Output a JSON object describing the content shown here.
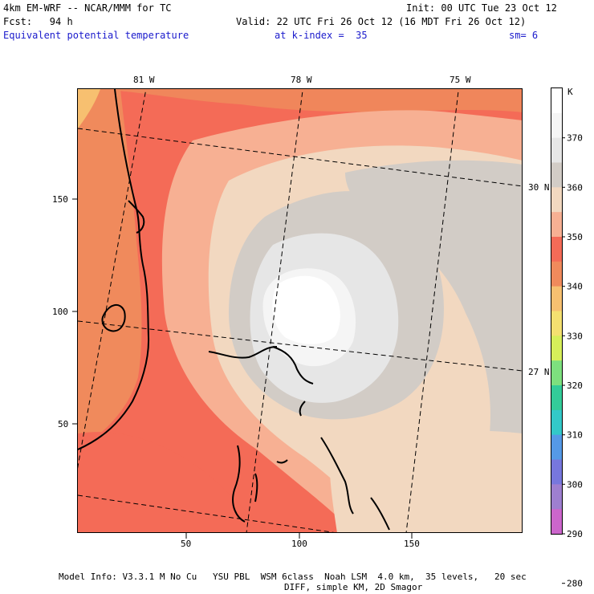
{
  "header": {
    "model_line": "4km EM-WRF -- NCAR/MMM for TC",
    "init_line": "Init: 00 UTC Tue 23 Oct 12",
    "forecast_line": "Fcst:   94 h",
    "valid_line": "Valid: 22 UTC Fri 26 Oct 12 (16 MDT Fri 26 Oct 12)",
    "field_name": "Equivalent potential temperature",
    "level": "at k-index =  35",
    "smoothing": "sm= 6"
  },
  "map": {
    "longitude_labels": [
      "81 W",
      "78 W",
      "75 W"
    ],
    "latitude_labels": [
      "30 N",
      "27 N"
    ],
    "x_axis_ticks": [
      "50",
      "100",
      "150"
    ],
    "y_axis_ticks": [
      "150",
      "100",
      "50"
    ]
  },
  "colorbar": {
    "unit": "K",
    "levels": [
      "370",
      "360",
      "350",
      "340",
      "330",
      "320",
      "310",
      "300",
      "290",
      "280"
    ],
    "colors": [
      "#ffffff",
      "#f5f5f5",
      "#e6e6e6",
      "#d2ccc6",
      "#f2d8c0",
      "#f7b093",
      "#f46b57",
      "#f08a5c",
      "#f7c070",
      "#f4e070",
      "#d6ef5a",
      "#7de07e",
      "#33cc99",
      "#33c8c8",
      "#5599e6",
      "#7777dd",
      "#9e7fd0",
      "#cc66cc"
    ]
  },
  "footer": {
    "line1": "Model Info: V3.3.1 M No Cu   YSU PBL  WSM 6class  Noah LSM  4.0 km,  35 levels,   20 sec",
    "line2": "DIFF, simple KM, 2D Smagor"
  }
}
